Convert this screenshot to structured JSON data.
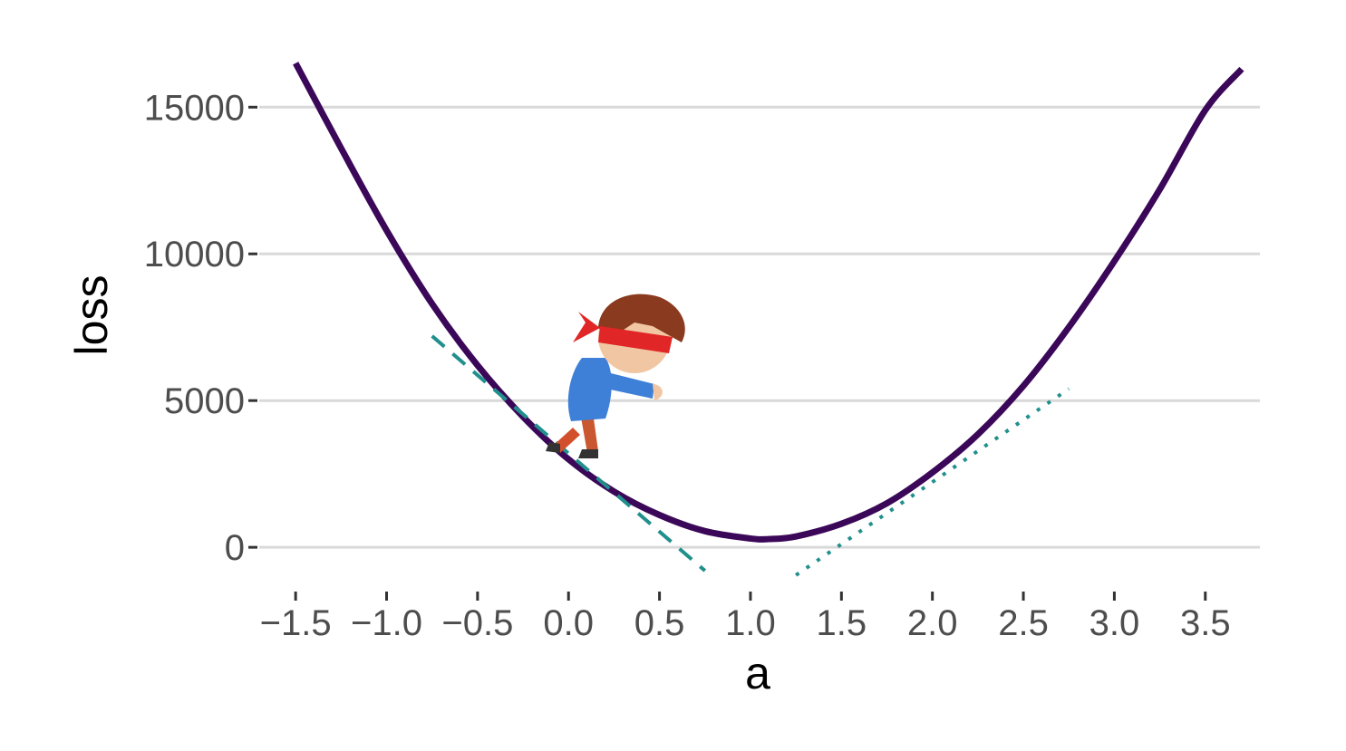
{
  "chart_data": {
    "type": "line",
    "title": "",
    "xlabel": "a",
    "ylabel": "loss",
    "xlim": [
      -1.7,
      3.8
    ],
    "ylim": [
      -1200,
      16800
    ],
    "x_ticks": [
      "-1.5",
      "-1.0",
      "-0.5",
      "0.0",
      "0.5",
      "1.0",
      "1.5",
      "2.0",
      "2.5",
      "3.0",
      "3.5"
    ],
    "y_ticks": [
      "0",
      "5000",
      "10000",
      "15000"
    ],
    "grid": {
      "horizontal": true,
      "vertical": false
    },
    "legend": "none",
    "series": [
      {
        "style": "solid",
        "color": "#3b0758",
        "x": [
          -1.5,
          -1.25,
          -1.0,
          -0.75,
          -0.5,
          -0.25,
          0.0,
          0.25,
          0.5,
          0.75,
          1.0,
          1.1,
          1.25,
          1.5,
          1.75,
          2.0,
          2.25,
          2.5,
          2.75,
          3.0,
          3.25,
          3.5,
          3.7
        ],
        "y": [
          16500,
          13600,
          10800,
          8300,
          6200,
          4450,
          3000,
          1900,
          1100,
          550,
          300,
          280,
          370,
          800,
          1500,
          2550,
          3850,
          5500,
          7500,
          9750,
          12200,
          14900,
          16300
        ]
      },
      {
        "style": "dashed",
        "color": "#21908d",
        "x": [
          -0.75,
          0.75
        ],
        "y": [
          7200,
          -800
        ]
      },
      {
        "style": "dotted",
        "color": "#21908d",
        "x": [
          1.25,
          2.75
        ],
        "y": [
          -950,
          5400
        ]
      }
    ]
  }
}
